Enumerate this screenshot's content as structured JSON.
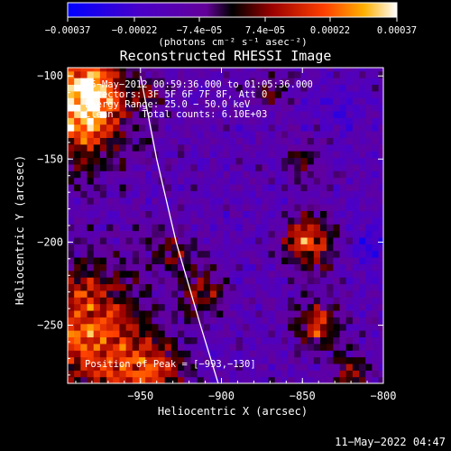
{
  "chart_data": {
    "type": "heatmap",
    "title": "Reconstructed RHESSI Image",
    "xlabel": "Heliocentric X (arcsec)",
    "ylabel": "Heliocentric Y (arcsec)",
    "xlim": [
      -995,
      -800
    ],
    "ylim": [
      -285,
      -95
    ],
    "x_ticks": [
      -950,
      -900,
      -850,
      -800
    ],
    "x_tick_labels": [
      "−950",
      "−900",
      "−850",
      "−800"
    ],
    "y_ticks": [
      -100,
      -150,
      -200,
      -250
    ],
    "y_tick_labels": [
      "−100",
      "−150",
      "−200",
      "−250"
    ],
    "colorbar": {
      "range": [
        -0.00037,
        0.00037
      ],
      "tick_values": [
        -0.00037,
        -0.00022,
        -7.4e-05,
        7.4e-05,
        0.00022,
        0.00037
      ],
      "tick_labels": [
        "−0.00037",
        "−0.00022",
        "−7.4e−05",
        "7.4e−05",
        "0.00022",
        "0.00037"
      ],
      "unit_label": "(photons cm⁻² s⁻¹ asec⁻²)"
    },
    "annotations": [
      "25−May−2012 00:59:36.000 to 01:05:36.000",
      "Detectors: 3F 5F 6F 7F 8F, Att 0",
      "Energy Range: 25.0 − 50.0 keV",
      "Clean     Total counts: 6.10E+03"
    ],
    "peak_label": "Position of Peak = [−993,−130]",
    "peak": [
      -993,
      -130
    ],
    "limb_curve": [
      [
        -950,
        -100
      ],
      [
        -940,
        -150
      ],
      [
        -928,
        -200
      ],
      [
        -913,
        -250
      ],
      [
        -902,
        -285
      ]
    ],
    "hot_regions": [
      {
        "x": -990,
        "y": -125,
        "r": 30,
        "v": 0.00037
      },
      {
        "x": -980,
        "y": -105,
        "r": 18,
        "v": 0.0003
      },
      {
        "x": -985,
        "y": -250,
        "r": 35,
        "v": 0.00034
      },
      {
        "x": -955,
        "y": -280,
        "r": 20,
        "v": 0.00024
      },
      {
        "x": -935,
        "y": -275,
        "r": 15,
        "v": 0.00018
      },
      {
        "x": -912,
        "y": -230,
        "r": 14,
        "v": 0.00022
      },
      {
        "x": -930,
        "y": -205,
        "r": 12,
        "v": 0.00016
      },
      {
        "x": -945,
        "y": -110,
        "r": 10,
        "v": 0.00015
      },
      {
        "x": -845,
        "y": -200,
        "r": 16,
        "v": 0.00032
      },
      {
        "x": -840,
        "y": -250,
        "r": 14,
        "v": 0.00026
      },
      {
        "x": -850,
        "y": -150,
        "r": 10,
        "v": 0.00016
      },
      {
        "x": -820,
        "y": -280,
        "r": 12,
        "v": 0.0002
      },
      {
        "x": -870,
        "y": -110,
        "r": 10,
        "v": 0.00014
      }
    ],
    "cold_regions": [
      {
        "x": -810,
        "y": -200,
        "r": 14,
        "v": -0.00012
      },
      {
        "x": -830,
        "y": -120,
        "r": 16,
        "v": -6e-05
      }
    ]
  },
  "footer": {
    "timestamp": "11−May−2022 04:47"
  }
}
